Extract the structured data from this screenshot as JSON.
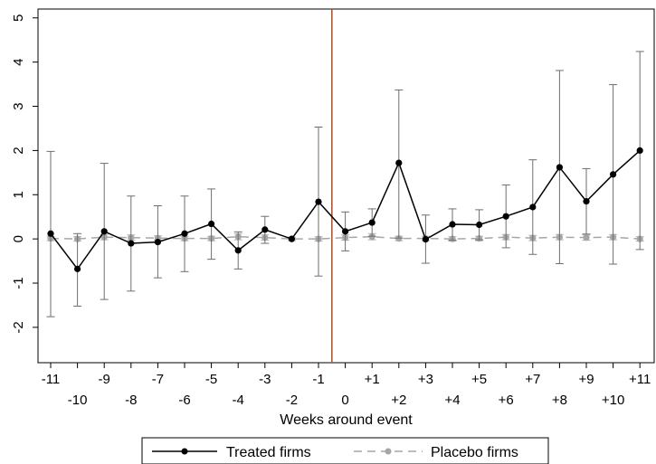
{
  "chart_data": {
    "type": "line",
    "xlabel": "Weeks around event",
    "ylabel": "",
    "ylim": [
      -2.8,
      5.2
    ],
    "y_ticks": [
      -2,
      -1,
      0,
      1,
      2,
      3,
      4,
      5
    ],
    "x": [
      -11,
      -10,
      -9,
      -8,
      -7,
      -6,
      -5,
      -4,
      -3,
      -2,
      -1,
      0,
      1,
      2,
      3,
      4,
      5,
      6,
      7,
      8,
      9,
      10,
      11
    ],
    "x_tick_labels": [
      "-11",
      "-10",
      "-9",
      "-8",
      "-7",
      "-6",
      "-5",
      "-4",
      "-3",
      "-2",
      "-1",
      "0",
      "+1",
      "+2",
      "+3",
      "+4",
      "+5",
      "+6",
      "+7",
      "+8",
      "+9",
      "+10",
      "+11"
    ],
    "event_line_x": -0.5,
    "event_line_color": "#b5562a",
    "grid": false,
    "legend_position": "bottom",
    "series": [
      {
        "name": "Treated firms",
        "style": "solid",
        "color": "#000000",
        "values": [
          0.12,
          -0.68,
          0.17,
          -0.1,
          -0.07,
          0.12,
          0.34,
          -0.26,
          0.21,
          0.0,
          0.84,
          0.17,
          0.37,
          1.72,
          -0.01,
          0.33,
          0.32,
          0.51,
          0.72,
          1.62,
          0.85,
          1.46,
          2.0
        ],
        "ci_lower": [
          -1.76,
          -1.52,
          -1.37,
          -1.18,
          -0.88,
          -0.74,
          -0.46,
          -0.68,
          -0.1,
          0.0,
          -0.84,
          -0.27,
          0.06,
          0.02,
          -0.55,
          -0.03,
          -0.02,
          -0.2,
          -0.35,
          -0.56,
          0.11,
          -0.57,
          -0.24
        ],
        "ci_upper": [
          1.98,
          0.12,
          1.71,
          0.97,
          0.75,
          0.97,
          1.13,
          0.16,
          0.51,
          0.0,
          2.53,
          0.61,
          0.68,
          3.37,
          0.54,
          0.68,
          0.66,
          1.22,
          1.79,
          3.81,
          1.59,
          3.49,
          4.24
        ]
      },
      {
        "name": "Placebo firms",
        "style": "dashed",
        "color": "#a6a6a6",
        "values": [
          0.01,
          0.0,
          0.04,
          0.03,
          0.02,
          0.01,
          0.01,
          0.05,
          0.03,
          0.0,
          0.0,
          0.03,
          0.05,
          0.01,
          0.01,
          0.0,
          0.01,
          0.04,
          0.02,
          0.04,
          0.03,
          0.04,
          0.0
        ],
        "ci_lower": [
          -0.04,
          -0.05,
          -0.02,
          -0.03,
          -0.03,
          -0.04,
          -0.04,
          -0.02,
          -0.03,
          -0.04,
          -0.05,
          -0.03,
          -0.02,
          -0.04,
          -0.04,
          -0.05,
          -0.04,
          -0.02,
          -0.04,
          -0.02,
          -0.03,
          -0.02,
          -0.05
        ],
        "ci_upper": [
          0.06,
          0.05,
          0.1,
          0.09,
          0.07,
          0.06,
          0.06,
          0.12,
          0.09,
          0.04,
          0.05,
          0.09,
          0.12,
          0.06,
          0.06,
          0.05,
          0.06,
          0.1,
          0.08,
          0.1,
          0.09,
          0.1,
          0.05
        ]
      }
    ]
  }
}
